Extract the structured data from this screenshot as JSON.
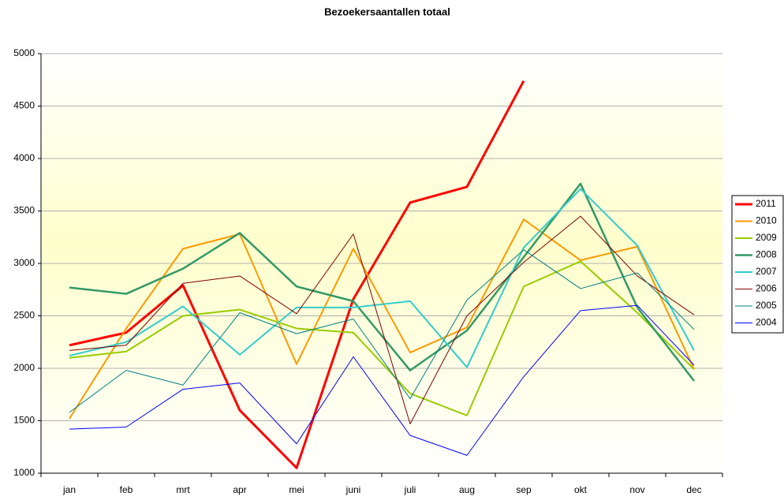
{
  "chart_data": {
    "type": "line",
    "title": "Bezoekersaantallen totaal",
    "categories": [
      "jan",
      "feb",
      "mrt",
      "apr",
      "mei",
      "juni",
      "juli",
      "aug",
      "sep",
      "okt",
      "nov",
      "dec"
    ],
    "series": [
      {
        "name": "2011",
        "color": "#ff0000",
        "values": [
          2220,
          2340,
          2790,
          1600,
          1050,
          2660,
          3580,
          3730,
          4740,
          null,
          null,
          null
        ]
      },
      {
        "name": "2010",
        "color": "#ff9900",
        "values": [
          1520,
          2380,
          3140,
          3280,
          2040,
          3140,
          2150,
          2390,
          3420,
          3030,
          3160,
          1990
        ]
      },
      {
        "name": "2009",
        "color": "#99cc00",
        "values": [
          2100,
          2160,
          2500,
          2560,
          2380,
          2340,
          1760,
          1550,
          2780,
          3020,
          2530,
          1990
        ]
      },
      {
        "name": "2008",
        "color": "#339966",
        "values": [
          2770,
          2710,
          2950,
          3290,
          2780,
          2640,
          1980,
          2360,
          3060,
          3760,
          2580,
          1880
        ]
      },
      {
        "name": "2007",
        "color": "#33cccc",
        "values": [
          2120,
          2250,
          2590,
          2130,
          2580,
          2580,
          2640,
          2010,
          3150,
          3710,
          3170,
          2170
        ]
      },
      {
        "name": "2006",
        "color": "#800000",
        "values": [
          2170,
          2220,
          2810,
          2880,
          2520,
          3280,
          1470,
          2500,
          3010,
          3450,
          2880,
          2510
        ]
      },
      {
        "name": "2005",
        "color": "#008080",
        "values": [
          1580,
          1980,
          1840,
          2530,
          2330,
          2470,
          1710,
          2650,
          3130,
          2760,
          2910,
          2370
        ]
      },
      {
        "name": "2004",
        "color": "#0000ff",
        "values": [
          1420,
          1440,
          1800,
          1860,
          1280,
          2110,
          1360,
          1170,
          1920,
          2550,
          2600,
          2030
        ]
      }
    ],
    "ylim": [
      1000,
      5000
    ],
    "yticks": [
      1000,
      1500,
      2000,
      2500,
      3000,
      3500,
      4000,
      4500,
      5000
    ],
    "grid": true,
    "legend": "right"
  }
}
